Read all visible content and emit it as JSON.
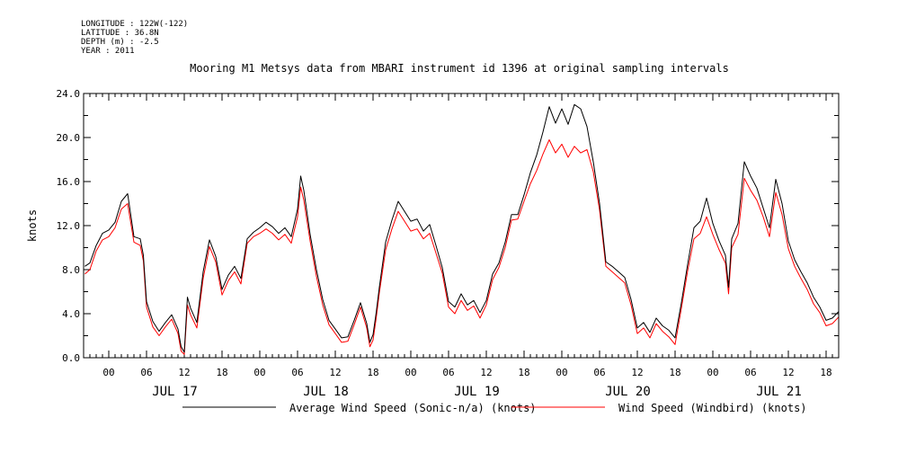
{
  "header": {
    "longitude": "LONGITUDE : 122W(-122)",
    "latitude": "LATITUDE : 36.8N",
    "depth": "DEPTH (m) : -2.5",
    "year": "YEAR : 2011"
  },
  "chart_data": {
    "type": "line",
    "title": "Mooring M1 Metsys data from MBARI instrument id 1396 at original sampling intervals",
    "ylabel": "knots",
    "xlabel": "",
    "ylim": [
      0,
      24
    ],
    "yticks": [
      "0.0",
      "4.0",
      "8.0",
      "12.0",
      "16.0",
      "20.0",
      "24.0"
    ],
    "xlim": [
      -4,
      116
    ],
    "x_units": "hours from 2011-07-17 00:00",
    "hour_ticks": [
      {
        "x": 0,
        "label": "00"
      },
      {
        "x": 6,
        "label": "06"
      },
      {
        "x": 12,
        "label": "12"
      },
      {
        "x": 18,
        "label": "18"
      },
      {
        "x": 24,
        "label": "00"
      },
      {
        "x": 30,
        "label": "06"
      },
      {
        "x": 36,
        "label": "12"
      },
      {
        "x": 42,
        "label": "18"
      },
      {
        "x": 48,
        "label": "00"
      },
      {
        "x": 54,
        "label": "06"
      },
      {
        "x": 60,
        "label": "12"
      },
      {
        "x": 66,
        "label": "18"
      },
      {
        "x": 72,
        "label": "00"
      },
      {
        "x": 78,
        "label": "06"
      },
      {
        "x": 84,
        "label": "12"
      },
      {
        "x": 90,
        "label": "18"
      },
      {
        "x": 96,
        "label": "00"
      },
      {
        "x": 102,
        "label": "06"
      },
      {
        "x": 108,
        "label": "12"
      },
      {
        "x": 114,
        "label": "18"
      }
    ],
    "day_labels": [
      {
        "x": 10.5,
        "label": "JUL 17"
      },
      {
        "x": 34.5,
        "label": "JUL 18"
      },
      {
        "x": 58.5,
        "label": "JUL 19"
      },
      {
        "x": 82.5,
        "label": "JUL 20"
      },
      {
        "x": 106.5,
        "label": "JUL 21"
      }
    ],
    "grid": false,
    "legend_position": "bottom",
    "series": [
      {
        "name": "Average Wind Speed (Sonic-n/a) (knots)",
        "color": "#000000",
        "points": [
          [
            -3.8,
            8.3
          ],
          [
            -3,
            8.6
          ],
          [
            -2,
            10.2
          ],
          [
            -1,
            11.3
          ],
          [
            0,
            11.6
          ],
          [
            1,
            12.3
          ],
          [
            2,
            14.2
          ],
          [
            3,
            14.9
          ],
          [
            4,
            11.0
          ],
          [
            5,
            10.8
          ],
          [
            5.5,
            9.3
          ],
          [
            6,
            5.1
          ],
          [
            7,
            3.3
          ],
          [
            8,
            2.4
          ],
          [
            9,
            3.2
          ],
          [
            10,
            3.9
          ],
          [
            11,
            2.6
          ],
          [
            11.5,
            1.0
          ],
          [
            12,
            0.5
          ],
          [
            12.5,
            5.5
          ],
          [
            13,
            4.5
          ],
          [
            14,
            3.2
          ],
          [
            15,
            7.8
          ],
          [
            16,
            10.7
          ],
          [
            17,
            9.2
          ],
          [
            18,
            6.2
          ],
          [
            19,
            7.5
          ],
          [
            20,
            8.3
          ],
          [
            21,
            7.2
          ],
          [
            22,
            10.8
          ],
          [
            23,
            11.4
          ],
          [
            24,
            11.8
          ],
          [
            25,
            12.3
          ],
          [
            26,
            11.9
          ],
          [
            27,
            11.3
          ],
          [
            28,
            11.8
          ],
          [
            29,
            11.0
          ],
          [
            30,
            13.5
          ],
          [
            30.5,
            16.5
          ],
          [
            31,
            15.2
          ],
          [
            32,
            11.2
          ],
          [
            33,
            8.0
          ],
          [
            34,
            5.3
          ],
          [
            35,
            3.4
          ],
          [
            36,
            2.6
          ],
          [
            37,
            1.8
          ],
          [
            38,
            1.9
          ],
          [
            39,
            3.4
          ],
          [
            40,
            5.0
          ],
          [
            41,
            3.1
          ],
          [
            41.5,
            1.4
          ],
          [
            42,
            2.1
          ],
          [
            42.5,
            4.1
          ],
          [
            43,
            6.4
          ],
          [
            44,
            10.5
          ],
          [
            45,
            12.5
          ],
          [
            46,
            14.2
          ],
          [
            47,
            13.3
          ],
          [
            48,
            12.4
          ],
          [
            49,
            12.6
          ],
          [
            50,
            11.5
          ],
          [
            51,
            12.1
          ],
          [
            52,
            10.2
          ],
          [
            53,
            8.2
          ],
          [
            54,
            5.1
          ],
          [
            55,
            4.6
          ],
          [
            56,
            5.8
          ],
          [
            57,
            4.8
          ],
          [
            58,
            5.2
          ],
          [
            59,
            4.1
          ],
          [
            60,
            5.2
          ],
          [
            61,
            7.6
          ],
          [
            62,
            8.6
          ],
          [
            63,
            10.5
          ],
          [
            64,
            13.0
          ],
          [
            65,
            13.0
          ],
          [
            66,
            14.8
          ],
          [
            67,
            16.8
          ],
          [
            68,
            18.4
          ],
          [
            69,
            20.5
          ],
          [
            70,
            22.8
          ],
          [
            71,
            21.3
          ],
          [
            72,
            22.6
          ],
          [
            73,
            21.2
          ],
          [
            74,
            23.0
          ],
          [
            75,
            22.6
          ],
          [
            76,
            21.0
          ],
          [
            77,
            17.8
          ],
          [
            78,
            14.0
          ],
          [
            79,
            8.7
          ],
          [
            80,
            8.3
          ],
          [
            81,
            7.8
          ],
          [
            82,
            7.3
          ],
          [
            83,
            5.3
          ],
          [
            84,
            2.7
          ],
          [
            85,
            3.2
          ],
          [
            86,
            2.3
          ],
          [
            87,
            3.6
          ],
          [
            88,
            2.9
          ],
          [
            89,
            2.5
          ],
          [
            90,
            1.8
          ],
          [
            91,
            5.0
          ],
          [
            92,
            8.5
          ],
          [
            93,
            11.8
          ],
          [
            94,
            12.4
          ],
          [
            95,
            14.5
          ],
          [
            96,
            12.2
          ],
          [
            97,
            10.6
          ],
          [
            98,
            9.3
          ],
          [
            98.5,
            6.4
          ],
          [
            99,
            10.8
          ],
          [
            100,
            12.2
          ],
          [
            101,
            17.8
          ],
          [
            102,
            16.5
          ],
          [
            103,
            15.4
          ],
          [
            104,
            13.6
          ],
          [
            105,
            11.8
          ],
          [
            106,
            16.2
          ],
          [
            107,
            14.0
          ],
          [
            108,
            10.6
          ],
          [
            109,
            8.9
          ],
          [
            110,
            7.8
          ],
          [
            111,
            6.8
          ],
          [
            112,
            5.5
          ],
          [
            113,
            4.6
          ],
          [
            114,
            3.4
          ],
          [
            115,
            3.6
          ],
          [
            116,
            4.2
          ],
          [
            117,
            4.8
          ],
          [
            117.5,
            3.4
          ]
        ]
      },
      {
        "name": "Wind Speed (Windbird) (knots)",
        "color": "#ff0000",
        "points": [
          [
            -3.8,
            7.6
          ],
          [
            -3,
            8.0
          ],
          [
            -2,
            9.7
          ],
          [
            -1,
            10.7
          ],
          [
            0,
            11.0
          ],
          [
            1,
            11.8
          ],
          [
            2,
            13.5
          ],
          [
            3,
            14.0
          ],
          [
            4,
            10.5
          ],
          [
            5,
            10.2
          ],
          [
            5.5,
            8.8
          ],
          [
            6,
            4.6
          ],
          [
            7,
            2.8
          ],
          [
            8,
            2.0
          ],
          [
            9,
            2.8
          ],
          [
            10,
            3.5
          ],
          [
            11,
            2.2
          ],
          [
            11.5,
            0.6
          ],
          [
            12,
            0.3
          ],
          [
            12.5,
            4.8
          ],
          [
            13,
            3.9
          ],
          [
            14,
            2.7
          ],
          [
            15,
            7.2
          ],
          [
            16,
            10.1
          ],
          [
            17,
            8.7
          ],
          [
            18,
            5.7
          ],
          [
            19,
            7.0
          ],
          [
            20,
            7.8
          ],
          [
            21,
            6.7
          ],
          [
            22,
            10.4
          ],
          [
            23,
            11.0
          ],
          [
            24,
            11.3
          ],
          [
            25,
            11.7
          ],
          [
            26,
            11.3
          ],
          [
            27,
            10.7
          ],
          [
            28,
            11.2
          ],
          [
            29,
            10.4
          ],
          [
            30,
            12.8
          ],
          [
            30.5,
            15.5
          ],
          [
            31,
            14.3
          ],
          [
            32,
            10.6
          ],
          [
            33,
            7.4
          ],
          [
            34,
            4.8
          ],
          [
            35,
            3.0
          ],
          [
            36,
            2.2
          ],
          [
            37,
            1.4
          ],
          [
            38,
            1.5
          ],
          [
            39,
            3.0
          ],
          [
            40,
            4.6
          ],
          [
            41,
            2.7
          ],
          [
            41.5,
            1.0
          ],
          [
            42,
            1.6
          ],
          [
            42.5,
            3.6
          ],
          [
            43,
            5.9
          ],
          [
            44,
            9.8
          ],
          [
            45,
            11.7
          ],
          [
            46,
            13.3
          ],
          [
            47,
            12.4
          ],
          [
            48,
            11.5
          ],
          [
            49,
            11.7
          ],
          [
            50,
            10.8
          ],
          [
            51,
            11.3
          ],
          [
            52,
            9.5
          ],
          [
            53,
            7.7
          ],
          [
            54,
            4.6
          ],
          [
            55,
            4.0
          ],
          [
            56,
            5.2
          ],
          [
            57,
            4.3
          ],
          [
            58,
            4.7
          ],
          [
            59,
            3.6
          ],
          [
            60,
            4.8
          ],
          [
            61,
            7.1
          ],
          [
            62,
            8.2
          ],
          [
            63,
            10.0
          ],
          [
            64,
            12.5
          ],
          [
            65,
            12.6
          ],
          [
            66,
            14.2
          ],
          [
            67,
            15.8
          ],
          [
            68,
            17.0
          ],
          [
            69,
            18.5
          ],
          [
            70,
            19.8
          ],
          [
            71,
            18.6
          ],
          [
            72,
            19.4
          ],
          [
            73,
            18.2
          ],
          [
            74,
            19.2
          ],
          [
            75,
            18.6
          ],
          [
            76,
            18.9
          ],
          [
            77,
            16.9
          ],
          [
            78,
            13.4
          ],
          [
            79,
            8.3
          ],
          [
            80,
            7.8
          ],
          [
            81,
            7.3
          ],
          [
            82,
            6.8
          ],
          [
            83,
            4.8
          ],
          [
            84,
            2.2
          ],
          [
            85,
            2.7
          ],
          [
            86,
            1.8
          ],
          [
            87,
            3.1
          ],
          [
            88,
            2.4
          ],
          [
            89,
            1.9
          ],
          [
            90,
            1.2
          ],
          [
            91,
            4.5
          ],
          [
            92,
            7.9
          ],
          [
            93,
            10.8
          ],
          [
            94,
            11.3
          ],
          [
            95,
            12.8
          ],
          [
            96,
            11.2
          ],
          [
            97,
            9.8
          ],
          [
            98,
            8.6
          ],
          [
            98.5,
            5.8
          ],
          [
            99,
            10.0
          ],
          [
            100,
            11.2
          ],
          [
            101,
            16.3
          ],
          [
            102,
            15.2
          ],
          [
            103,
            14.3
          ],
          [
            104,
            12.8
          ],
          [
            105,
            11.0
          ],
          [
            106,
            15.0
          ],
          [
            107,
            13.0
          ],
          [
            108,
            9.9
          ],
          [
            109,
            8.3
          ],
          [
            110,
            7.2
          ],
          [
            111,
            6.2
          ],
          [
            112,
            4.9
          ],
          [
            113,
            4.1
          ],
          [
            114,
            2.9
          ],
          [
            115,
            3.1
          ],
          [
            116,
            3.7
          ],
          [
            117,
            4.2
          ],
          [
            117.5,
            3.0
          ]
        ]
      }
    ]
  }
}
